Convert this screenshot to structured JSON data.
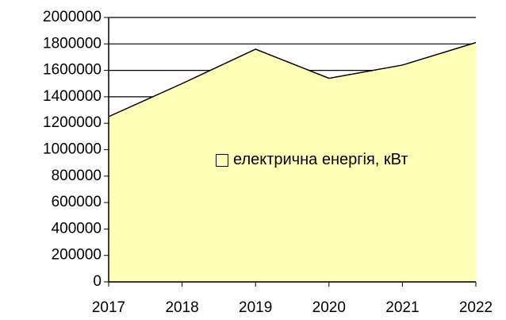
{
  "chart_data": {
    "type": "area",
    "categories": [
      "2017",
      "2018",
      "2019",
      "2020",
      "2021",
      "2022"
    ],
    "series": [
      {
        "name": "електрична енергія, кВт",
        "color": "#ffffb8",
        "values": [
          1250000,
          1500000,
          1760000,
          1540000,
          1640000,
          1810000
        ]
      }
    ],
    "ylim": [
      0,
      2000000
    ],
    "yticks": [
      0,
      200000,
      400000,
      600000,
      800000,
      1000000,
      1200000,
      1400000,
      1600000,
      1800000,
      2000000
    ],
    "grid": true
  }
}
